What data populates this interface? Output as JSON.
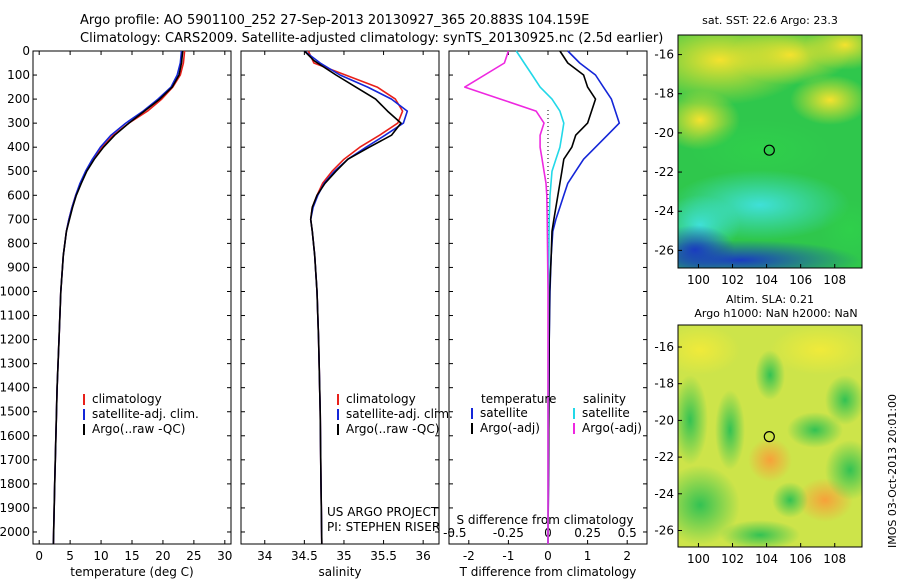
{
  "header": {
    "line1": "Argo profile: AO 5901100_252 27-Sep-2013 20130927_365 20.883S 104.159E",
    "line2": "Climatology: CARS2009. Satellite-adjusted climatology: synTS_20130925.nc (2.5d earlier)"
  },
  "side_label": "IMOS 03-Oct-2013 20:01:00",
  "colors": {
    "climatology": "#e8201a",
    "satellite": "#1426d8",
    "argo": "#000000",
    "satellite_s": "#22d8e8",
    "argo_s": "#ee28e0"
  },
  "chart_data": [
    {
      "type": "line",
      "name": "temperature-profile",
      "xlabel": "temperature (deg C)",
      "ylabel": "",
      "xlim": [
        -1,
        31
      ],
      "ylim": [
        2050,
        0
      ],
      "xticks": [
        0,
        5,
        10,
        15,
        20,
        25,
        30
      ],
      "yticks": [
        0,
        100,
        200,
        300,
        400,
        500,
        600,
        700,
        800,
        900,
        1000,
        1100,
        1200,
        1300,
        1400,
        1500,
        1600,
        1700,
        1800,
        1900,
        2000
      ],
      "legend": {
        "placement": "lower-middle",
        "entries": [
          "climatology",
          "satellite-adj. clim.",
          "Argo(..raw -QC)"
        ]
      },
      "series": [
        {
          "name": "climatology",
          "color": "#e8201a",
          "x": [
            23.5,
            23.3,
            22.8,
            21.6,
            19.8,
            17.5,
            14.5,
            12.0,
            10.2,
            8.8,
            7.6,
            6.7,
            5.9,
            5.3,
            4.8,
            4.4,
            3.9,
            3.5,
            3.2,
            2.9,
            2.7,
            2.5,
            2.3
          ],
          "y": [
            0,
            50,
            100,
            150,
            200,
            250,
            300,
            350,
            400,
            450,
            500,
            550,
            600,
            650,
            700,
            750,
            850,
            1000,
            1200,
            1400,
            1600,
            1800,
            2050
          ]
        },
        {
          "name": "satellite-adj. clim.",
          "color": "#1426d8",
          "x": [
            23.0,
            22.8,
            22.3,
            21.3,
            19.2,
            16.8,
            14.0,
            11.6,
            9.9,
            8.6,
            7.5,
            6.6,
            5.9,
            5.3,
            4.8,
            4.4,
            3.9,
            3.5,
            3.2,
            2.9,
            2.7,
            2.5,
            2.3
          ],
          "y": [
            0,
            50,
            100,
            150,
            200,
            250,
            300,
            350,
            400,
            450,
            500,
            550,
            600,
            650,
            700,
            750,
            850,
            1000,
            1200,
            1400,
            1600,
            1800,
            2050
          ]
        },
        {
          "name": "Argo(..raw -QC)",
          "color": "#000000",
          "x": [
            23.2,
            23.0,
            22.6,
            21.5,
            19.5,
            17.0,
            14.5,
            12.2,
            10.4,
            8.9,
            7.7,
            6.8,
            6.0,
            5.4,
            4.9,
            4.4,
            3.9,
            3.5,
            3.2,
            2.9,
            2.7,
            2.5,
            2.3
          ],
          "y": [
            0,
            50,
            100,
            150,
            200,
            250,
            300,
            350,
            400,
            450,
            500,
            550,
            600,
            650,
            700,
            750,
            850,
            1000,
            1200,
            1400,
            1600,
            1800,
            2050
          ]
        }
      ]
    },
    {
      "type": "line",
      "name": "salinity-profile",
      "xlabel": "salinity",
      "ylabel": "",
      "xlim": [
        33.7,
        36.2
      ],
      "ylim": [
        2050,
        0
      ],
      "xticks": [
        34,
        34.5,
        35,
        35.5,
        36
      ],
      "legend": {
        "placement": "lower-right",
        "entries": [
          "climatology",
          "satellite-adj. clim.",
          "Argo(..raw -QC)"
        ]
      },
      "credit": [
        "US ARGO PROJECT",
        "PI: STEPHEN RISER"
      ],
      "series": [
        {
          "name": "climatology",
          "color": "#e8201a",
          "x": [
            34.55,
            34.62,
            35.02,
            35.42,
            35.65,
            35.74,
            35.68,
            35.45,
            35.2,
            35.0,
            34.85,
            34.73,
            34.66,
            34.6,
            34.58,
            34.6,
            34.63,
            34.66,
            34.68,
            34.7,
            34.71,
            34.72
          ],
          "y": [
            0,
            50,
            100,
            150,
            200,
            250,
            300,
            350,
            400,
            450,
            500,
            550,
            600,
            650,
            700,
            750,
            850,
            1000,
            1200,
            1500,
            1800,
            2050
          ]
        },
        {
          "name": "satellite-adj. clim.",
          "color": "#1426d8",
          "x": [
            34.5,
            34.7,
            34.95,
            35.3,
            35.6,
            35.8,
            35.75,
            35.52,
            35.28,
            35.05,
            34.88,
            34.75,
            34.67,
            34.61,
            34.58,
            34.6,
            34.63,
            34.66,
            34.68,
            34.7,
            34.71,
            34.72
          ],
          "y": [
            0,
            50,
            100,
            150,
            200,
            250,
            300,
            350,
            400,
            450,
            500,
            550,
            600,
            650,
            700,
            750,
            850,
            1000,
            1200,
            1500,
            1800,
            2050
          ]
        },
        {
          "name": "Argo(..raw -QC)",
          "color": "#000000",
          "x": [
            34.5,
            34.62,
            34.9,
            35.15,
            35.4,
            35.55,
            35.72,
            35.6,
            35.32,
            35.05,
            34.9,
            34.76,
            34.66,
            34.6,
            34.58,
            34.6,
            34.63,
            34.66,
            34.68,
            34.7,
            34.71,
            34.72
          ],
          "y": [
            0,
            40,
            100,
            150,
            200,
            250,
            300,
            350,
            400,
            450,
            500,
            550,
            600,
            650,
            700,
            750,
            850,
            1000,
            1200,
            1500,
            1800,
            2050
          ]
        }
      ]
    },
    {
      "type": "line",
      "name": "difference-from-climatology",
      "xlabel": "T difference from climatology",
      "xlabel_top": "S difference from climatology",
      "ylabel": "",
      "xlim": [
        -2.5,
        2.5
      ],
      "ylim": [
        2050,
        0
      ],
      "xticks": [
        -2,
        -1,
        0,
        1,
        2
      ],
      "sticks": [
        -0.5,
        -0.25,
        0,
        0.25,
        0.5
      ],
      "sticks_labels": [
        "-0.5",
        "-0.25",
        "0",
        "0.25",
        "0.5"
      ],
      "legend": {
        "placement": "lower-middle",
        "temperature_title": "temperature",
        "salinity_title": "salinity",
        "entries": [
          "satellite",
          "Argo(-adj)",
          "satellite",
          "Argo(-adj)"
        ]
      },
      "series": [
        {
          "name": "satellite",
          "color": "#1426d8",
          "x": [
            0.5,
            0.8,
            1.2,
            1.4,
            1.6,
            1.8,
            1.5,
            1.2,
            0.9,
            0.7,
            0.5,
            0.4,
            0.3,
            0.2,
            0.12,
            0.08,
            0.05,
            0.03,
            0.02,
            0.01,
            0.0
          ],
          "y": [
            0,
            50,
            100,
            150,
            200,
            300,
            350,
            400,
            450,
            500,
            550,
            600,
            650,
            700,
            750,
            850,
            1000,
            1200,
            1500,
            1800,
            2050
          ]
        },
        {
          "name": "Argo(-adj)",
          "color": "#000000",
          "x": [
            0.3,
            0.5,
            0.9,
            1.0,
            1.2,
            1.0,
            0.7,
            0.6,
            0.4,
            0.35,
            0.3,
            0.25,
            0.2,
            0.15,
            0.1,
            0.08,
            0.04,
            0.03,
            0.02,
            0.01,
            0.0
          ],
          "y": [
            0,
            50,
            100,
            150,
            200,
            300,
            350,
            400,
            450,
            500,
            550,
            600,
            650,
            700,
            750,
            850,
            1000,
            1200,
            1500,
            1800,
            2050
          ]
        },
        {
          "name": "satellite",
          "color": "#22d8e8",
          "x": [
            -0.8,
            -0.6,
            -0.4,
            -0.2,
            0.1,
            0.3,
            0.4,
            0.35,
            0.3,
            0.2,
            0.1,
            0.05,
            0.03,
            0.02,
            0.01,
            0.0,
            0.0
          ],
          "y": [
            0,
            50,
            100,
            150,
            200,
            250,
            300,
            350,
            400,
            450,
            500,
            600,
            700,
            850,
            1000,
            1500,
            2050
          ]
        },
        {
          "name": "Argo(-adj)",
          "color": "#ee28e0",
          "x": [
            -1.0,
            -1.1,
            -2.1,
            -1.2,
            -0.3,
            -0.1,
            -0.2,
            -0.2,
            -0.15,
            -0.1,
            -0.05,
            -0.03,
            -0.02,
            -0.01,
            0.0,
            0.0,
            0.0
          ],
          "y": [
            0,
            50,
            150,
            200,
            250,
            300,
            350,
            400,
            450,
            500,
            550,
            600,
            700,
            850,
            1000,
            1500,
            2050
          ]
        }
      ]
    },
    {
      "type": "heatmap",
      "name": "sst-map",
      "title": "sat. SST: 22.6  Argo: 23.3",
      "xlim": [
        98.8,
        109.6
      ],
      "ylim": [
        -26.9,
        -15.0
      ],
      "xticks": [
        100,
        102,
        104,
        106,
        108
      ],
      "yticks": [
        -16,
        -18,
        -20,
        -22,
        -24,
        -26
      ],
      "float_location": {
        "lon": 104.159,
        "lat": -20.883
      }
    },
    {
      "type": "heatmap",
      "name": "sla-map",
      "title_lines": [
        "Altim. SLA: 0.21",
        "Argo h1000: NaN h2000: NaN"
      ],
      "xlim": [
        98.8,
        109.6
      ],
      "ylim": [
        -26.9,
        -14.8
      ],
      "xticks": [
        100,
        102,
        104,
        106,
        108
      ],
      "yticks": [
        -16,
        -18,
        -20,
        -22,
        -24,
        -26
      ],
      "float_location": {
        "lon": 104.159,
        "lat": -20.883
      }
    }
  ]
}
